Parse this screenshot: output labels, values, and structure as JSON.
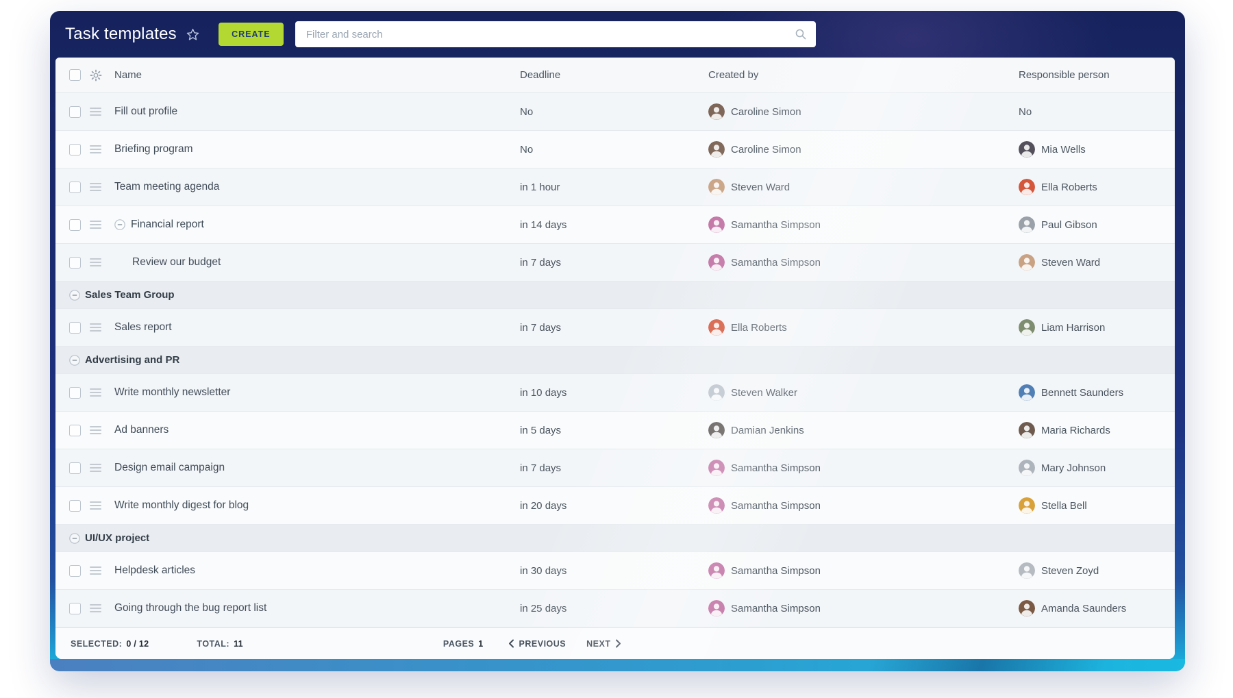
{
  "header": {
    "title": "Task templates",
    "create_label": "CREATE",
    "search_placeholder": "Filter and search"
  },
  "icons": {
    "favorite": "star-outline",
    "search": "magnifier",
    "column_settings": "gear",
    "drag": "hamburger-lines",
    "collapse": "minus-circle",
    "previous": "chevron-left",
    "next": "chevron-right"
  },
  "colors": {
    "accent_green": "#b4d832",
    "header_navy": "#1b2a6e",
    "bottom_cyan": "#19b9e1",
    "create_text": "#1d3a6e"
  },
  "table": {
    "columns": {
      "name": "Name",
      "deadline": "Deadline",
      "created_by": "Created by",
      "responsible": "Responsible person"
    },
    "rows": [
      {
        "type": "task",
        "name": "Fill out profile",
        "deadline": "No",
        "created_by": {
          "name": "Caroline Simon",
          "color": "#7d6557"
        },
        "responsible": {
          "text": "No"
        }
      },
      {
        "type": "task",
        "name": "Briefing program",
        "deadline": "No",
        "created_by": {
          "name": "Caroline Simon",
          "color": "#7d6557"
        },
        "responsible": {
          "name": "Mia Wells",
          "color": "#55515c"
        }
      },
      {
        "type": "task",
        "name": "Team meeting agenda",
        "deadline": "in 1 hour",
        "created_by": {
          "name": "Steven Ward",
          "color": "#c9a283"
        },
        "responsible": {
          "name": "Ella Roberts",
          "color": "#d4573b"
        }
      },
      {
        "type": "task",
        "name": "Financial report",
        "deadline": "in 14 days",
        "collapsible": true,
        "created_by": {
          "name": "Samantha Simpson",
          "color": "#c06fa2"
        },
        "responsible": {
          "name": "Paul Gibson",
          "color": "#9aa1a9"
        }
      },
      {
        "type": "task",
        "name": "Review our budget",
        "deadline": "in 7 days",
        "indent": true,
        "created_by": {
          "name": "Samantha Simpson",
          "color": "#c06fa2"
        },
        "responsible": {
          "name": "Steven Ward",
          "color": "#c9a283"
        }
      },
      {
        "type": "group",
        "name": "Sales Team Group"
      },
      {
        "type": "task",
        "name": "Sales report",
        "deadline": "in 7 days",
        "created_by": {
          "name": "Ella Roberts",
          "color": "#d4573b"
        },
        "responsible": {
          "name": "Liam Harrison",
          "color": "#7e8d6f"
        }
      },
      {
        "type": "group",
        "name": "Advertising and PR"
      },
      {
        "type": "task",
        "name": "Write monthly newsletter",
        "deadline": "in 10 days",
        "created_by": {
          "name": "Steven Walker",
          "color": "#b9c2cc"
        },
        "responsible": {
          "name": "Bennett Saunders",
          "color": "#4f7fb5"
        }
      },
      {
        "type": "task",
        "name": "Ad banners",
        "deadline": "in 5 days",
        "created_by": {
          "name": "Damian Jenkins",
          "color": "#534f4d"
        },
        "responsible": {
          "name": "Maria Richards",
          "color": "#6e5a4e"
        }
      },
      {
        "type": "task",
        "name": "Design email campaign",
        "deadline": "in 7 days",
        "created_by": {
          "name": "Samantha Simpson",
          "color": "#c06fa2"
        },
        "responsible": {
          "name": "Mary Johnson",
          "color": "#aeb4bb"
        }
      },
      {
        "type": "task",
        "name": "Write monthly digest for blog",
        "deadline": "in 20 days",
        "created_by": {
          "name": "Samantha Simpson",
          "color": "#c06fa2"
        },
        "responsible": {
          "name": "Stella Bell",
          "color": "#d9a13a"
        }
      },
      {
        "type": "group",
        "name": "UI/UX project"
      },
      {
        "type": "task",
        "name": "Helpdesk articles",
        "deadline": "in 30 days",
        "created_by": {
          "name": "Samantha Simpson",
          "color": "#c06fa2"
        },
        "responsible": {
          "name": "Steven Zoyd",
          "color": "#b6bbc1"
        }
      },
      {
        "type": "task",
        "name": "Going through the bug report list",
        "deadline": "in 25 days",
        "created_by": {
          "name": "Samantha Simpson",
          "color": "#c06fa2"
        },
        "responsible": {
          "name": "Amanda Saunders",
          "color": "#7a5a45"
        }
      }
    ]
  },
  "footer": {
    "selected_label": "SELECTED:",
    "selected_value": "0 / 12",
    "total_label": "TOTAL:",
    "total_value": "11",
    "pages_label": "PAGES",
    "pages_value": "1",
    "previous_label": "PREVIOUS",
    "next_label": "NEXT"
  }
}
